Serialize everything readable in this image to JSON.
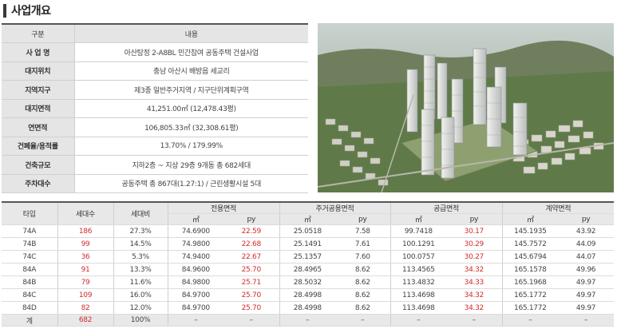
{
  "title": "사업개요",
  "overview": {
    "header": {
      "label": "구분",
      "value": "내용"
    },
    "rows": [
      {
        "label": "사 업 명",
        "value": "아산탕정 2-A8BL 민간참여 공동주택 건설사업"
      },
      {
        "label": "대지위치",
        "value": "충남 아산시 배방읍 세교리"
      },
      {
        "label": "지역지구",
        "value": "제3종 일반주거지역 / 지구단위계획구역"
      },
      {
        "label": "대지면적",
        "value": "41,251.00㎡ (12,478.43평)"
      },
      {
        "label": "연면적",
        "value": "106,805.33㎡ (32,308.61평)"
      },
      {
        "label": "건폐율/용적률",
        "value": "13.70% / 179.99%"
      },
      {
        "label": "건축규모",
        "value": "지하2층 ~ 지상 29층 9개동 총 682세대"
      },
      {
        "label": "주차대수",
        "value": "공동주택 총 867대(1.27:1) / 근린생활시설 5대"
      }
    ]
  },
  "units": {
    "headers": {
      "type": "타입",
      "households": "세대수",
      "ratio": "세대비",
      "exclusive": "전용면적",
      "common": "주거공용면적",
      "supply": "공급면적",
      "contract": "계약면적",
      "m2": "㎡",
      "py": "py"
    },
    "rows": [
      {
        "type": "74A",
        "households": "186",
        "ratio": "27.3%",
        "ex_m2": "74.6900",
        "ex_py": "22.59",
        "co_m2": "25.0518",
        "co_py": "7.58",
        "su_m2": "99.7418",
        "su_py": "30.17",
        "ct_m2": "145.1935",
        "ct_py": "43.92"
      },
      {
        "type": "74B",
        "households": "99",
        "ratio": "14.5%",
        "ex_m2": "74.9800",
        "ex_py": "22.68",
        "co_m2": "25.1491",
        "co_py": "7.61",
        "su_m2": "100.1291",
        "su_py": "30.29",
        "ct_m2": "145.7572",
        "ct_py": "44.09"
      },
      {
        "type": "74C",
        "households": "36",
        "ratio": "5.3%",
        "ex_m2": "74.9400",
        "ex_py": "22.67",
        "co_m2": "25.1357",
        "co_py": "7.60",
        "su_m2": "100.0757",
        "su_py": "30.27",
        "ct_m2": "145.6794",
        "ct_py": "44.07"
      },
      {
        "type": "84A",
        "households": "91",
        "ratio": "13.3%",
        "ex_m2": "84.9600",
        "ex_py": "25.70",
        "co_m2": "28.4965",
        "co_py": "8.62",
        "su_m2": "113.4565",
        "su_py": "34.32",
        "ct_m2": "165.1578",
        "ct_py": "49.96"
      },
      {
        "type": "84B",
        "households": "79",
        "ratio": "11.6%",
        "ex_m2": "84.9800",
        "ex_py": "25.71",
        "co_m2": "28.5032",
        "co_py": "8.62",
        "su_m2": "113.4832",
        "su_py": "34.33",
        "ct_m2": "165.1968",
        "ct_py": "49.97"
      },
      {
        "type": "84C",
        "households": "109",
        "ratio": "16.0%",
        "ex_m2": "84.9700",
        "ex_py": "25.70",
        "co_m2": "28.4998",
        "co_py": "8.62",
        "su_m2": "113.4698",
        "su_py": "34.32",
        "ct_m2": "165.1772",
        "ct_py": "49.97"
      },
      {
        "type": "84D",
        "households": "82",
        "ratio": "12.0%",
        "ex_m2": "84.9700",
        "ex_py": "25.70",
        "co_m2": "28.4998",
        "co_py": "8.62",
        "su_m2": "113.4698",
        "su_py": "34.32",
        "ct_m2": "165.1772",
        "ct_py": "49.97"
      }
    ],
    "total": {
      "type": "계",
      "households": "682",
      "ratio": "100%",
      "dash": "–"
    }
  },
  "colors": {
    "accent_red": "#d22b2b",
    "header_gray": "#e5e5e5"
  }
}
